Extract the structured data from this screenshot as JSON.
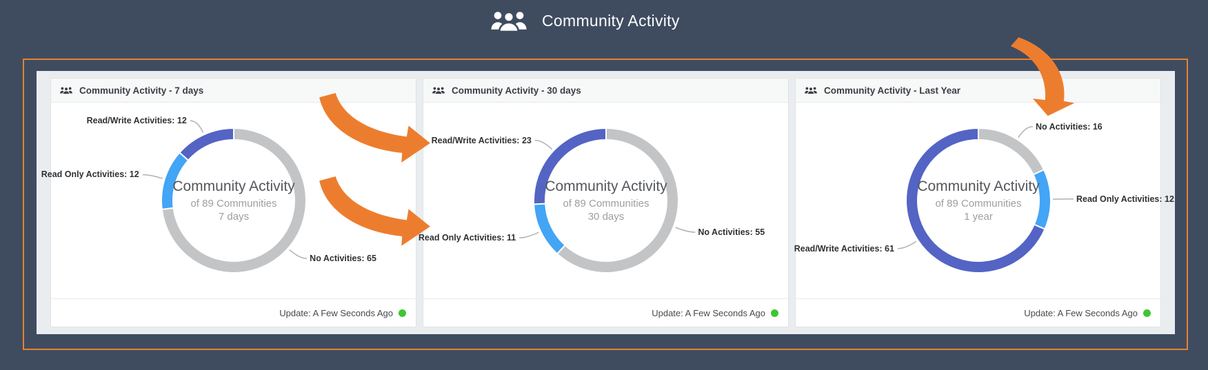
{
  "page": {
    "title": "Community Activity",
    "title_icon": "people-group-icon"
  },
  "colors": {
    "background": "#3f4c60",
    "frame_border": "#e8812f",
    "panel": "#eaedf0",
    "card": "#ffffff",
    "card_header": "#f7f8f8",
    "arrow": "#ed7d2e",
    "slice_read_write": "#5464c4",
    "slice_read_only": "#42a5f5",
    "slice_no_activity": "#c3c4c6",
    "leader_line": "#adb2b6",
    "status_dot": "#3ec631"
  },
  "cards": [
    {
      "title": "Community Activity - 7 days",
      "icon": "people-group-icon",
      "footer": {
        "text": "Update: A Few Seconds Ago",
        "status_color": "#3ec631"
      }
    },
    {
      "title": "Community Activity - 30 days",
      "icon": "people-group-icon",
      "footer": {
        "text": "Update: A Few Seconds Ago",
        "status_color": "#3ec631"
      }
    },
    {
      "title": "Community Activity - Last Year",
      "icon": "people-group-icon",
      "footer": {
        "text": "Update: A Few Seconds Ago",
        "status_color": "#3ec631"
      }
    }
  ],
  "chart_data": [
    {
      "type": "donut",
      "title": "Community Activity - 7 days",
      "total_communities": 89,
      "center": {
        "title": "Community Activity",
        "subtitle": "of 89 Communities",
        "period": "7 days"
      },
      "slices": [
        {
          "id": "read-write",
          "label": "Read/Write Activities: 12",
          "value": 12,
          "color": "#5464c4"
        },
        {
          "id": "read-only",
          "label": "Read Only Activities: 12",
          "value": 12,
          "color": "#42a5f5"
        },
        {
          "id": "no-activity",
          "label": "No Activities: 65",
          "value": 65,
          "color": "#c3c4c6"
        }
      ]
    },
    {
      "type": "donut",
      "title": "Community Activity - 30 days",
      "total_communities": 89,
      "center": {
        "title": "Community Activity",
        "subtitle": "of 89 Communities",
        "period": "30 days"
      },
      "slices": [
        {
          "id": "read-write",
          "label": "Read/Write Activities: 23",
          "value": 23,
          "color": "#5464c4"
        },
        {
          "id": "read-only",
          "label": "Read Only Activities: 11",
          "value": 11,
          "color": "#42a5f5"
        },
        {
          "id": "no-activity",
          "label": "No Activities: 55",
          "value": 55,
          "color": "#c3c4c6"
        }
      ]
    },
    {
      "type": "donut",
      "title": "Community Activity - Last Year",
      "total_communities": 89,
      "center": {
        "title": "Community Activity",
        "subtitle": "of 89 Communities",
        "period": "1 year"
      },
      "slices": [
        {
          "id": "read-write",
          "label": "Read/Write Activities: 61",
          "value": 61,
          "color": "#5464c4"
        },
        {
          "id": "read-only",
          "label": "Read Only Activities: 12",
          "value": 12,
          "color": "#42a5f5"
        },
        {
          "id": "no-activity",
          "label": "No Activities: 16",
          "value": 16,
          "color": "#c3c4c6"
        }
      ]
    }
  ],
  "annotations": [
    {
      "icon": "curved-arrow",
      "points_to": "Read/Write Activities: 23"
    },
    {
      "icon": "curved-arrow",
      "points_to": "Read Only Activities: 11"
    },
    {
      "icon": "curved-arrow",
      "points_to": "No Activities: 16"
    }
  ]
}
